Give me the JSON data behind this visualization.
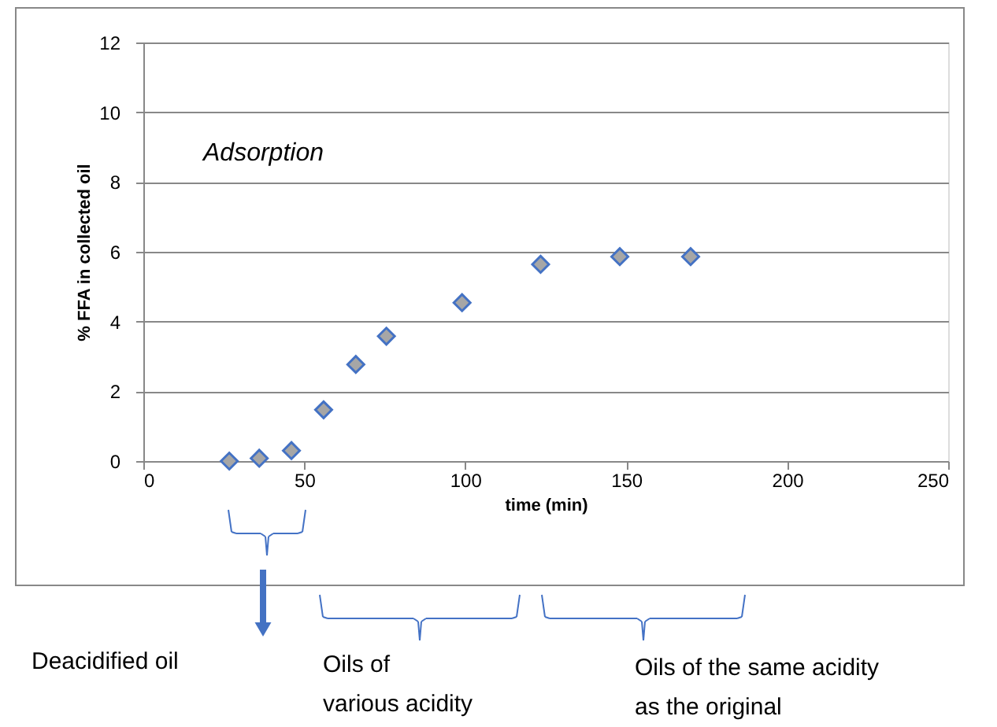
{
  "chart_data": {
    "type": "scatter",
    "xlabel": "time (min)",
    "ylabel": "% FFA in collected oil",
    "x": [
      26.7,
      36,
      46,
      56,
      66,
      75.5,
      99,
      123.4,
      148,
      170
    ],
    "series": [
      {
        "color": "#4472c4",
        "values": [
          0,
          0.08,
          0.3,
          1.47,
          2.77,
          3.58,
          4.54,
          5.64,
          5.86,
          5.86
        ]
      }
    ],
    "xlim": [
      0,
      250
    ],
    "xticks": [
      0,
      50,
      100,
      150,
      200,
      250
    ],
    "ylim": [
      0,
      12
    ],
    "yticks": [
      0,
      2,
      4,
      6,
      8,
      10,
      12
    ],
    "grid": "y",
    "marker": "diamond",
    "annotations": [
      "Adsorption",
      "Deacidified oil",
      "Oils of\nvarious acidity",
      "Oils of the same acidity\nas the original"
    ]
  }
}
